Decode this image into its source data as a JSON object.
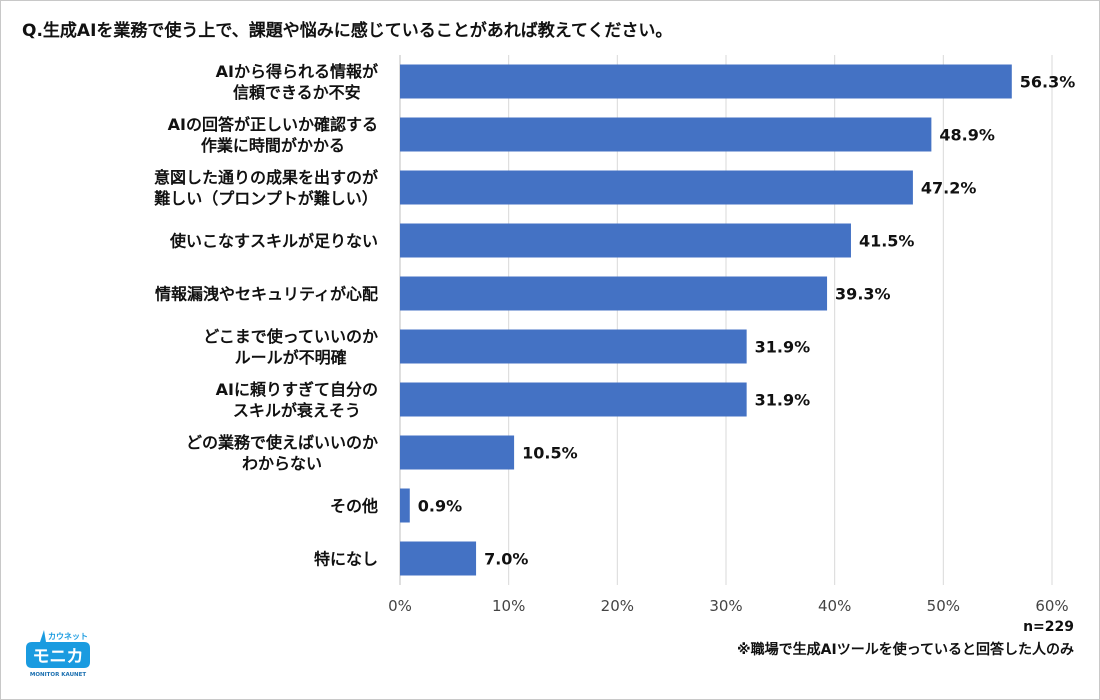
{
  "chart_data": {
    "type": "bar",
    "orientation": "horizontal",
    "title": "Q.生成AIを業務で使う上で、課題や悩みに感じていることがあれば教えてください。",
    "categories": [
      "AIから得られる情報が\n信頼できるか不安",
      "AIの回答が正しいか確認する\n作業に時間がかかる",
      "意図した通りの成果を出すのが\n難しい（プロンプトが難しい）",
      "使いこなすスキルが足りない",
      "情報漏洩やセキュリティが心配",
      "どこまで使っていいのか\nルールが不明確",
      "AIに頼りすぎて自分の\nスキルが衰えそう",
      "どの業務で使えばいいのか\nわからない",
      "その他",
      "特になし"
    ],
    "values": [
      56.3,
      48.9,
      47.2,
      41.5,
      39.3,
      31.9,
      31.9,
      10.5,
      0.9,
      7.0
    ],
    "data_labels": [
      "56.3%",
      "48.9%",
      "47.2%",
      "41.5%",
      "39.3%",
      "31.9%",
      "31.9%",
      "10.5%",
      "0.9%",
      "7.0%"
    ],
    "xlim": [
      0,
      60
    ],
    "xticks": [
      "0%",
      "10%",
      "20%",
      "30%",
      "40%",
      "50%",
      "60%"
    ],
    "grid": true,
    "bar_color": "#4472c4",
    "grid_color": "#d9d9d9"
  },
  "notes": {
    "n": "n=229",
    "footnote": "※職場で生成AIツールを使っていると回答した人のみ"
  },
  "logo": {
    "top": "カウネット",
    "main": "モニカ",
    "sub": "MONITOR KAUNET",
    "color": "#1a9be0"
  }
}
